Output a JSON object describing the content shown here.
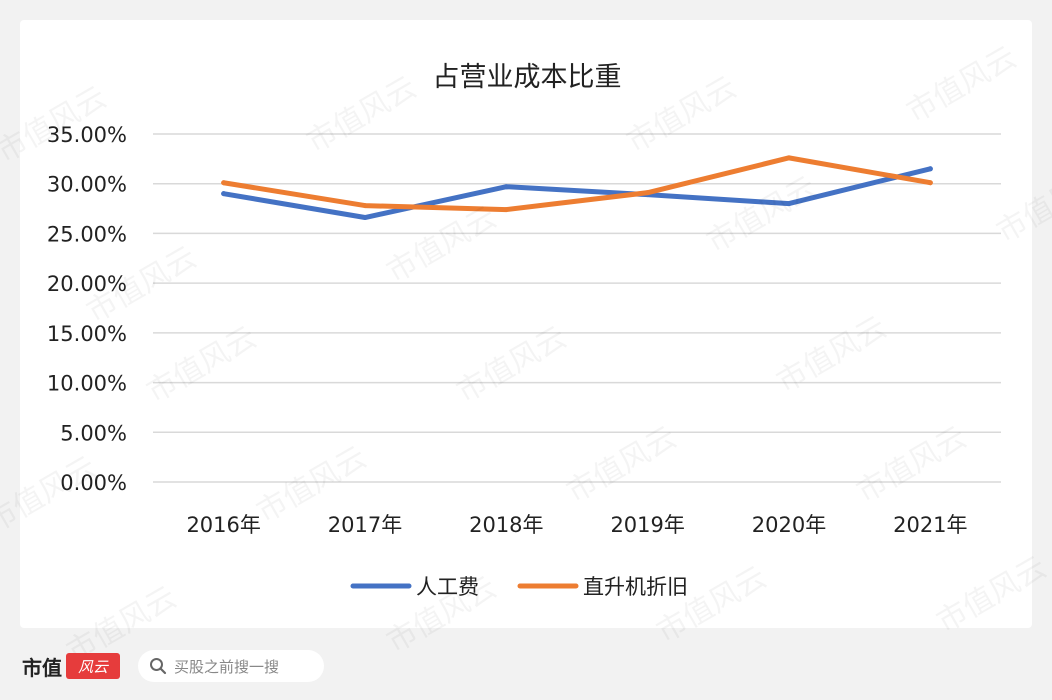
{
  "chart_data": {
    "type": "line",
    "title": "占营业成本比重",
    "categories": [
      "2016年",
      "2017年",
      "2018年",
      "2019年",
      "2020年",
      "2021年"
    ],
    "series": [
      {
        "name": "人工费",
        "color": "#4472c4",
        "values": [
          0.29,
          0.266,
          0.297,
          0.289,
          0.28,
          0.315
        ]
      },
      {
        "name": "直升机折旧",
        "color": "#ed7d31",
        "values": [
          0.301,
          0.278,
          0.274,
          0.291,
          0.326,
          0.301
        ]
      }
    ],
    "ylim": [
      0,
      0.35
    ],
    "yticks": [
      "0.00%",
      "5.00%",
      "10.00%",
      "15.00%",
      "20.00%",
      "25.00%",
      "30.00%",
      "35.00%"
    ],
    "grid": true,
    "legend_position": "bottom"
  },
  "watermark": "市值风云",
  "footer": {
    "brand": "市值",
    "brand_logo": "风云",
    "search_placeholder": "买股之前搜一搜"
  }
}
